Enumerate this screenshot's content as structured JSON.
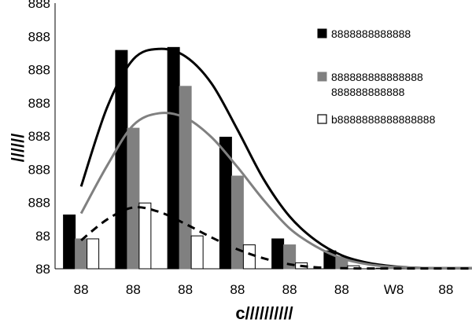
{
  "chart_data": {
    "type": "bar",
    "title": "",
    "xlabel": "c//////////",
    "ylabel": "//////",
    "ylim": [
      0,
      888
    ],
    "y_ticks": [
      "88",
      "88",
      "888",
      "888",
      "888",
      "888",
      "888",
      "888",
      "888"
    ],
    "categories": [
      "88",
      "88",
      "88",
      "88",
      "88",
      "88",
      "W8",
      "88"
    ],
    "series": [
      {
        "name": "8888888888888",
        "fill": "#000000",
        "stroke": "#000000",
        "values": [
          180,
          730,
          740,
          440,
          100,
          60,
          2,
          2
        ]
      },
      {
        "name": "888888888888888",
        "name_line2": "888888888888",
        "fill": "#808080",
        "stroke": "#808080",
        "values": [
          100,
          470,
          610,
          310,
          80,
          40,
          2,
          2
        ]
      },
      {
        "name": "b8888888888888888",
        "fill": "#ffffff",
        "stroke": "#000000",
        "values": [
          100,
          220,
          110,
          80,
          20,
          10,
          2,
          2
        ]
      }
    ],
    "trend_lines": [
      {
        "name": "trend-black",
        "color": "#000000",
        "dashed": false,
        "x": [
          0.0,
          0.5,
          1.0,
          1.5,
          2.0,
          2.5,
          3.0,
          3.5,
          4.0,
          4.5,
          5.0,
          5.5,
          6.0,
          6.5,
          7.0,
          7.5
        ],
        "y": [
          275,
          540,
          700,
          735,
          710,
          620,
          465,
          300,
          175,
          95,
          45,
          20,
          8,
          3,
          2,
          2
        ]
      },
      {
        "name": "trend-gray",
        "color": "#808080",
        "dashed": false,
        "x": [
          0.0,
          0.5,
          1.0,
          1.5,
          2.0,
          2.5,
          3.0,
          3.5,
          4.0,
          4.5,
          5.0,
          5.5,
          6.0,
          6.5,
          7.0,
          7.5
        ],
        "y": [
          185,
          345,
          480,
          520,
          505,
          440,
          340,
          230,
          135,
          75,
          35,
          15,
          6,
          3,
          2,
          2
        ]
      },
      {
        "name": "trend-dashed",
        "color": "#000000",
        "dashed": true,
        "x": [
          0.0,
          0.5,
          1.0,
          1.5,
          2.0,
          2.5,
          3.0,
          3.5,
          4.0,
          4.5,
          5.0,
          5.5,
          6.0,
          6.5,
          7.0,
          7.5
        ],
        "y": [
          95,
          165,
          205,
          190,
          150,
          105,
          65,
          35,
          15,
          5,
          2,
          1,
          1,
          1,
          1,
          1
        ]
      }
    ],
    "legend_position": "right"
  }
}
